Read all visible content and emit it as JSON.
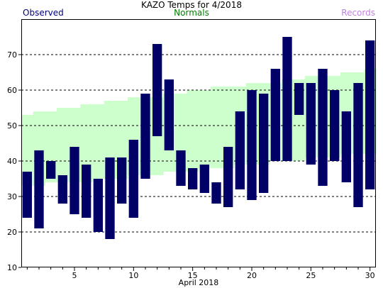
{
  "chart_data": {
    "type": "bar",
    "title": "KAZO Temps for 4/2018",
    "xlabel": "April 2018",
    "ylabel": "",
    "xlim": [
      0.5,
      30.5
    ],
    "ylim": [
      10,
      80
    ],
    "yticks": [
      10,
      20,
      30,
      40,
      50,
      60,
      70
    ],
    "xticks": [
      5,
      10,
      15,
      20,
      25,
      30
    ],
    "grid": "dashed horizontal",
    "legend": [
      "Observed",
      "Normals",
      "Records"
    ],
    "days": [
      1,
      2,
      3,
      4,
      5,
      6,
      7,
      8,
      9,
      10,
      11,
      12,
      13,
      14,
      15,
      16,
      17,
      18,
      19,
      20,
      21,
      22,
      23,
      24,
      25,
      26,
      27,
      28,
      29,
      30
    ],
    "series": [
      {
        "name": "Observed",
        "color": "#000066",
        "high": [
          37,
          43,
          40,
          36,
          44,
          39,
          35,
          41,
          41,
          46,
          59,
          73,
          63,
          43,
          38,
          39,
          34,
          44,
          54,
          60,
          59,
          66,
          75,
          62,
          62,
          66,
          60,
          54,
          62,
          74
        ],
        "low": [
          24,
          21,
          35,
          28,
          25,
          24,
          20,
          18,
          28,
          24,
          35,
          47,
          43,
          33,
          32,
          31,
          28,
          27,
          32,
          29,
          31,
          40,
          40,
          53,
          39,
          33,
          40,
          34,
          27,
          32
        ]
      },
      {
        "name": "Normals",
        "color": "#ccffcc",
        "high": [
          53,
          54,
          54,
          55,
          55,
          56,
          56,
          57,
          57,
          58,
          58,
          58,
          59,
          59,
          60,
          60,
          61,
          61,
          61,
          62,
          62,
          62,
          63,
          63,
          64,
          64,
          64,
          65,
          65,
          66
        ],
        "low": [
          33,
          33,
          34,
          34,
          34,
          34,
          35,
          35,
          35,
          36,
          36,
          36,
          37,
          37,
          37,
          38,
          38,
          38,
          39,
          39,
          39,
          40,
          40,
          40,
          41,
          41,
          41,
          42,
          42,
          42
        ]
      }
    ]
  },
  "colors": {
    "observed": "#000066",
    "normals": "#ccffcc",
    "records": "#c080e0",
    "observed_legend": "#000080",
    "normals_legend": "#008000"
  }
}
